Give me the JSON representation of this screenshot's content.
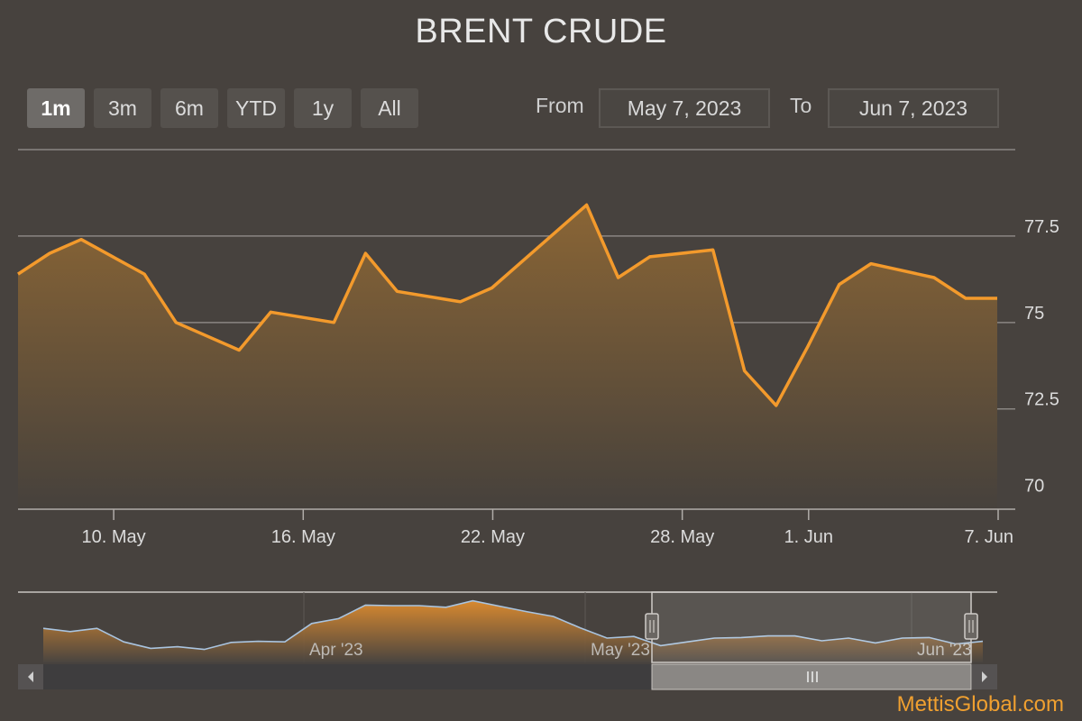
{
  "title": "BRENT CRUDE",
  "range_selector": {
    "buttons": [
      {
        "label": "1m",
        "active": true
      },
      {
        "label": "3m",
        "active": false
      },
      {
        "label": "6m",
        "active": false
      },
      {
        "label": "YTD",
        "active": false
      },
      {
        "label": "1y",
        "active": false
      },
      {
        "label": "All",
        "active": false
      }
    ],
    "from_label": "From",
    "from_value": "May 7, 2023",
    "to_label": "To",
    "to_value": "Jun 7, 2023"
  },
  "colors": {
    "line": "#f39a2c",
    "area_top": "#8a6535",
    "area_bottom": "#46413c",
    "grid": "#8a8683",
    "navigator_line": "#a9c4e0",
    "background": "#47423e"
  },
  "chart_data": {
    "type": "area",
    "title": "BRENT CRUDE",
    "x": [
      "2023-05-07",
      "2023-05-08",
      "2023-05-09",
      "2023-05-11",
      "2023-05-12",
      "2023-05-14",
      "2023-05-15",
      "2023-05-17",
      "2023-05-18",
      "2023-05-19",
      "2023-05-21",
      "2023-05-22",
      "2023-05-23",
      "2023-05-25",
      "2023-05-26",
      "2023-05-27",
      "2023-05-29",
      "2023-05-30",
      "2023-05-31",
      "2023-06-01",
      "2023-06-02",
      "2023-06-03",
      "2023-06-05",
      "2023-06-06",
      "2023-06-07"
    ],
    "y": [
      76.4,
      77.0,
      77.4,
      76.4,
      75.0,
      74.2,
      75.3,
      75.0,
      77.0,
      75.9,
      75.6,
      76.0,
      76.8,
      78.4,
      76.3,
      76.9,
      77.1,
      73.6,
      72.6,
      74.3,
      76.1,
      76.7,
      76.3,
      75.7,
      75.7
    ],
    "x_ticks": [
      "10. May",
      "16. May",
      "22. May",
      "28. May",
      "1. Jun",
      "7. Jun"
    ],
    "y_ticks": [
      "70",
      "72.5",
      "75",
      "77.5"
    ],
    "ylim": [
      69.6,
      80
    ],
    "grid": true,
    "legend": "none"
  },
  "navigator": {
    "labels": [
      "Apr '23",
      "May '23",
      "Jun '23"
    ],
    "values": [
      74.3,
      73.7,
      74.3,
      71.8,
      70.6,
      70.9,
      70.4,
      71.7,
      71.9,
      71.8,
      75.2,
      76.1,
      78.6,
      78.5,
      78.5,
      78.2,
      79.4,
      78.4,
      77.4,
      76.5,
      74.4,
      72.5,
      72.8,
      71.1,
      71.8,
      72.5,
      72.6,
      72.9,
      72.9,
      72.0,
      72.5,
      71.6,
      72.5,
      72.6,
      71.4,
      71.9
    ],
    "ylim": [
      68,
      81
    ]
  },
  "watermark": "MettisGlobal.com"
}
